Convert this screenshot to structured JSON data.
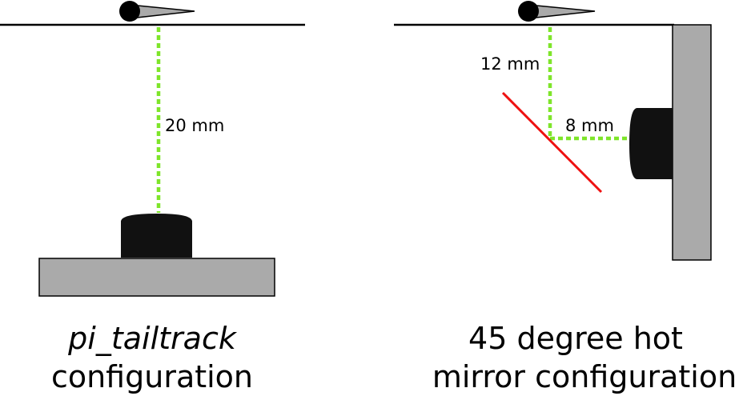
{
  "colors": {
    "beam": "#7ee52a",
    "mirror": "#ee1111",
    "plate": "#aaaaaa",
    "camera": "#111111",
    "line": "#000000"
  },
  "left_panel": {
    "distance_label": "20 mm",
    "caption_line1": "pi_tailtrack",
    "caption_line2": "configuration"
  },
  "right_panel": {
    "vertical_label": "12 mm",
    "horizontal_label": "8 mm",
    "caption_line1": "45 degree hot",
    "caption_line2": "mirror configuration"
  }
}
